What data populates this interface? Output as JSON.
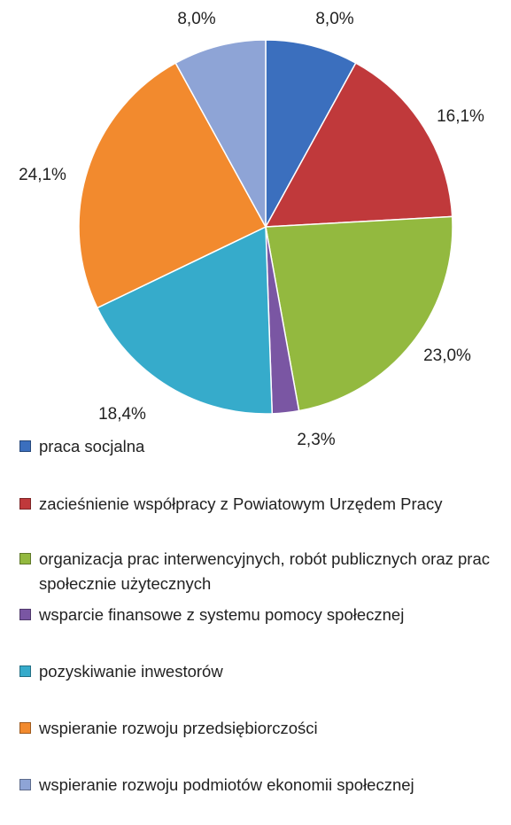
{
  "chart_data": {
    "type": "pie",
    "categories": [
      "praca socjalna",
      "zacieśnienie współpracy z Powiatowym Urzędem Pracy",
      "organizacja prac interwencyjnych, robót publicznych oraz prac społecznie użytecznych",
      "wsparcie finansowe z systemu pomocy społecznej",
      "pozyskiwanie inwestorów",
      "wspieranie rozwoju przedsiębiorczości",
      "wspieranie rozwoju podmiotów ekonomii społecznej"
    ],
    "values": [
      8.0,
      16.1,
      23.0,
      2.3,
      18.4,
      24.1,
      8.0
    ],
    "value_labels": [
      "8,0%",
      "16,1%",
      "23,0%",
      "2,3%",
      "18,4%",
      "24,1%",
      "8,0%"
    ],
    "colors": [
      "#3b6fbe",
      "#c0393b",
      "#93b93f",
      "#7a56a3",
      "#36abcb",
      "#f28a2e",
      "#8ea4d6"
    ],
    "legend": "bottom"
  }
}
